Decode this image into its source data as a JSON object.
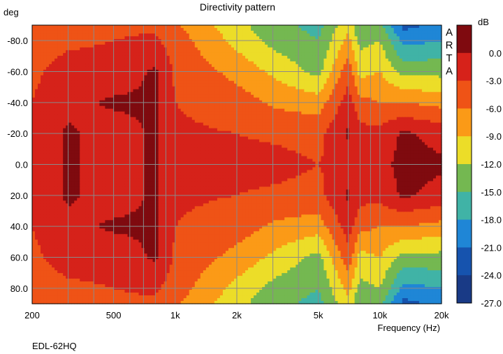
{
  "chart_data": {
    "type": "heatmap",
    "title": "Directivity pattern",
    "ylabel": "deg",
    "xlabel": "Frequency (Hz)",
    "x_scale": "log",
    "xlim": [
      200,
      20000
    ],
    "ylim": [
      -90,
      90
    ],
    "y_axis_inverted": true,
    "x_ticks": [
      {
        "value": 200,
        "label": "200"
      },
      {
        "value": 500,
        "label": "500"
      },
      {
        "value": 1000,
        "label": "1k"
      },
      {
        "value": 2000,
        "label": "2k"
      },
      {
        "value": 5000,
        "label": "5k"
      },
      {
        "value": 10000,
        "label": "10k"
      },
      {
        "value": 20000,
        "label": "20k"
      }
    ],
    "x_grid": [
      200,
      300,
      400,
      500,
      600,
      700,
      800,
      900,
      1000,
      2000,
      3000,
      4000,
      5000,
      6000,
      7000,
      8000,
      9000,
      10000,
      20000
    ],
    "y_ticks": [
      {
        "value": -80,
        "label": "-80.0"
      },
      {
        "value": -60,
        "label": "-60.0"
      },
      {
        "value": -40,
        "label": "-40.0"
      },
      {
        "value": -20,
        "label": "-20.0"
      },
      {
        "value": 0,
        "label": "0.0"
      },
      {
        "value": 20,
        "label": "20.0"
      },
      {
        "value": 40,
        "label": "40.0"
      },
      {
        "value": 60,
        "label": "60.0"
      },
      {
        "value": 80,
        "label": "80.0"
      }
    ],
    "colorbar": {
      "unit": "dB",
      "ticks": [
        {
          "value": 0,
          "label": "0.0"
        },
        {
          "value": -3,
          "label": "-3.0"
        },
        {
          "value": -6,
          "label": "-6.0"
        },
        {
          "value": -9,
          "label": "-9.0"
        },
        {
          "value": -12,
          "label": "-12.0"
        },
        {
          "value": -15,
          "label": "-15.0"
        },
        {
          "value": -18,
          "label": "-18.0"
        },
        {
          "value": -21,
          "label": "-21.0"
        },
        {
          "value": -24,
          "label": "-24.0"
        },
        {
          "value": -27,
          "label": "-27.0"
        }
      ],
      "levels": [
        {
          "max": 3,
          "min": 0,
          "color": "#7f0a0f"
        },
        {
          "max": 0,
          "min": -3,
          "color": "#d6221a"
        },
        {
          "max": -3,
          "min": -6,
          "color": "#ef5316"
        },
        {
          "max": -6,
          "min": -9,
          "color": "#fb9a17"
        },
        {
          "max": -9,
          "min": -12,
          "color": "#ecdd28"
        },
        {
          "max": -12,
          "min": -15,
          "color": "#74b851"
        },
        {
          "max": -15,
          "min": -18,
          "color": "#40b3a6"
        },
        {
          "max": -18,
          "min": -21,
          "color": "#1f86d6"
        },
        {
          "max": -21,
          "min": -24,
          "color": "#1653ae"
        },
        {
          "max": -24,
          "min": -27,
          "color": "#193a86"
        }
      ]
    },
    "angles": [
      -90,
      -80,
      -60,
      -40,
      -20,
      0,
      20,
      40,
      60,
      80,
      90
    ],
    "frequencies": [
      200,
      300,
      500,
      800,
      1000,
      2000,
      3000,
      5000,
      7000,
      8000,
      10000,
      13000,
      20000
    ],
    "values_db": [
      [
        -4.5,
        -3.8,
        -3.5,
        -3.5,
        -5.5,
        -11,
        -14,
        -16,
        -10,
        -15,
        -14,
        -22,
        -20
      ],
      [
        -4,
        -3.5,
        -3,
        -2.5,
        -4.5,
        -10,
        -13,
        -15,
        -8,
        -13,
        -12,
        -19,
        -18
      ],
      [
        -3.5,
        -2,
        -2,
        0.5,
        -3.5,
        -7,
        -9.5,
        -13,
        -4,
        -10,
        -9,
        -13,
        -13
      ],
      [
        -3,
        -1,
        0.5,
        0.5,
        -3,
        -4.5,
        -6.5,
        -7.5,
        -1.5,
        -5,
        -6,
        -6,
        -7
      ],
      [
        -2.5,
        0.5,
        -1.5,
        0.5,
        -2.5,
        -3,
        -3.5,
        -4,
        0.5,
        -2,
        -2,
        0.5,
        -1
      ],
      [
        -2.5,
        0.5,
        -1.5,
        0.5,
        -2.5,
        -2,
        -2,
        -3,
        -2,
        -1,
        -1,
        1,
        0.5
      ],
      [
        -2.5,
        0.5,
        -1.5,
        0.5,
        -2.5,
        -3,
        -3.5,
        -4,
        0.5,
        -2,
        -2,
        0.5,
        -1
      ],
      [
        -3,
        -1,
        0.5,
        0.5,
        -3,
        -4.5,
        -6.5,
        -7.5,
        -1.5,
        -5,
        -6,
        -6,
        -7
      ],
      [
        -3.5,
        -2,
        -2,
        0.5,
        -3.5,
        -7,
        -9.5,
        -13,
        -4,
        -10,
        -9,
        -13,
        -13
      ],
      [
        -4,
        -3.5,
        -3,
        -2.5,
        -4.5,
        -10,
        -13,
        -15,
        -8,
        -13,
        -12,
        -19,
        -18
      ],
      [
        -4.5,
        -3.8,
        -3.5,
        -3.5,
        -5.5,
        -11,
        -14,
        -16,
        -10,
        -15,
        -14,
        -22,
        -20
      ]
    ],
    "side_label": [
      "A",
      "R",
      "T",
      "A"
    ],
    "caption": "EDL-62HQ"
  }
}
